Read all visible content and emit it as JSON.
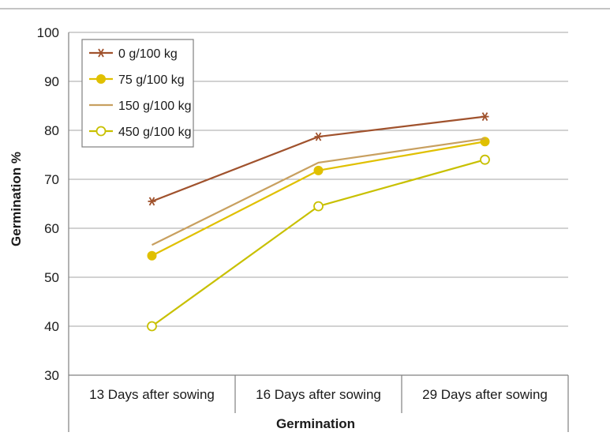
{
  "chart_data": {
    "type": "line",
    "title": "",
    "xlabel": "Germination",
    "ylabel": "Germination %",
    "categories": [
      "13 Days after sowing",
      "16 Days after sowing",
      "29 Days after sowing"
    ],
    "ylim": [
      30,
      100
    ],
    "yticks": [
      30,
      40,
      50,
      60,
      70,
      80,
      90,
      100
    ],
    "grid": true,
    "legend_position": "top-left",
    "series": [
      {
        "name": "0 g/100 kg",
        "values": [
          65.5,
          78.7,
          82.8
        ],
        "color": "#a0522d",
        "marker": "asterisk"
      },
      {
        "name": "75 g/100 kg",
        "values": [
          54.4,
          71.8,
          77.7
        ],
        "color": "#e0c000",
        "marker": "filled-circle"
      },
      {
        "name": "150 g/100 kg",
        "values": [
          56.6,
          73.4,
          78.3
        ],
        "color": "#c8a060",
        "marker": "none"
      },
      {
        "name": "450 g/100 kg",
        "values": [
          40.0,
          64.5,
          74.0
        ],
        "color": "#c8c000",
        "marker": "open-circle"
      }
    ]
  }
}
